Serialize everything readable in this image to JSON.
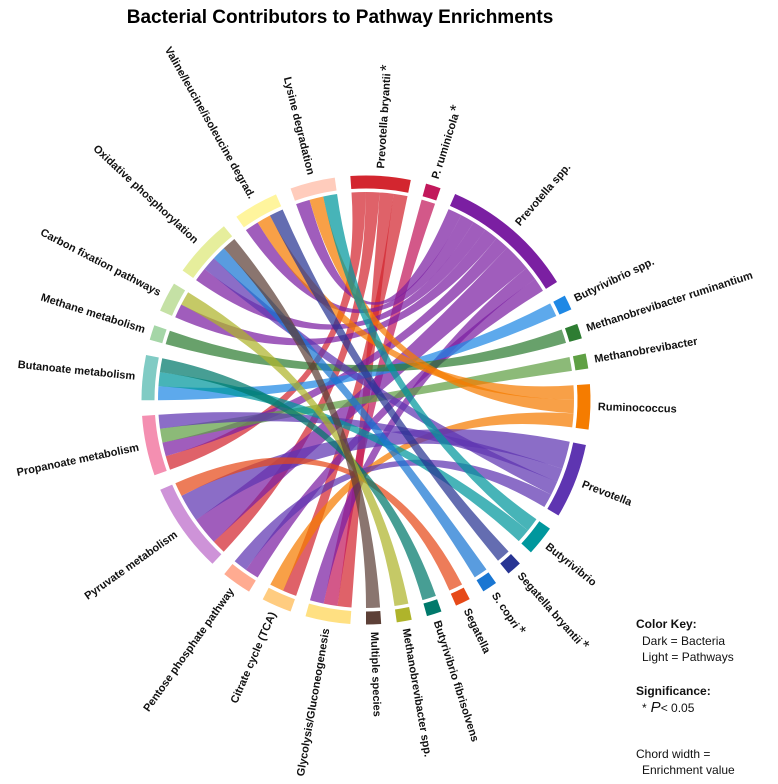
{
  "chart_data": {
    "type": "chord",
    "title": "Bacterial Contributors to Pathway Enrichments",
    "significance_marker": "*",
    "nodes": [
      {
        "name": "Prevotella bryantii",
        "group": "bacteria",
        "color": "#d3262f",
        "significant": true
      },
      {
        "name": "P. ruminicola",
        "group": "bacteria",
        "color": "#c2185b",
        "significant": true
      },
      {
        "name": "Prevotella spp.",
        "group": "bacteria",
        "color": "#7b1fa2",
        "significant": false
      },
      {
        "name": "Butyrivibrio spp.",
        "group": "bacteria",
        "color": "#1e88e5",
        "significant": false
      },
      {
        "name": "Methanobrevibacter ruminantium",
        "group": "bacteria",
        "color": "#2e7d32",
        "significant": false
      },
      {
        "name": "Methanobrevibacter",
        "group": "bacteria",
        "color": "#5fa044",
        "significant": false
      },
      {
        "name": "Ruminococcus",
        "group": "bacteria",
        "color": "#f57c00",
        "significant": false
      },
      {
        "name": "Prevotella",
        "group": "bacteria",
        "color": "#5e35b1",
        "significant": false
      },
      {
        "name": "Butyrivibrio",
        "group": "bacteria",
        "color": "#00979d",
        "significant": false
      },
      {
        "name": "Segatella bryantii",
        "group": "bacteria",
        "color": "#283593",
        "significant": true
      },
      {
        "name": "S. copri",
        "group": "bacteria",
        "color": "#1976d2",
        "significant": true
      },
      {
        "name": "Segatella",
        "group": "bacteria",
        "color": "#e64a19",
        "significant": false
      },
      {
        "name": "Butyrivibrio fibrisolvens",
        "group": "bacteria",
        "color": "#00796b",
        "significant": false
      },
      {
        "name": "Methanobrevibacter spp.",
        "group": "bacteria",
        "color": "#afb42b",
        "significant": false
      },
      {
        "name": "Multiple species",
        "group": "bacteria",
        "color": "#5d4037",
        "significant": false
      },
      {
        "name": "Glycolysis/Gluconeogenesis",
        "group": "pathway",
        "color": "#ffe082",
        "significant": false
      },
      {
        "name": "Citrate cycle (TCA)",
        "group": "pathway",
        "color": "#ffcc80",
        "significant": false
      },
      {
        "name": "Pentose phosphate pathway",
        "group": "pathway",
        "color": "#ffab91",
        "significant": false
      },
      {
        "name": "Pyruvate metabolism",
        "group": "pathway",
        "color": "#ce93d8",
        "significant": false
      },
      {
        "name": "Propanoate metabolism",
        "group": "pathway",
        "color": "#f48fb1",
        "significant": false
      },
      {
        "name": "Butanoate metabolism",
        "group": "pathway",
        "color": "#80cbc4",
        "significant": false
      },
      {
        "name": "Methane metabolism",
        "group": "pathway",
        "color": "#a5d6a7",
        "significant": false
      },
      {
        "name": "Carbon fixation pathways",
        "group": "pathway",
        "color": "#c5e1a5",
        "significant": false
      },
      {
        "name": "Oxidative phosphorylation",
        "group": "pathway",
        "color": "#e6ee9c",
        "significant": false
      },
      {
        "name": "Valine/leucine/isoleucine degrad.",
        "group": "pathway",
        "color": "#fff59d",
        "significant": false
      },
      {
        "name": "Lysine degradation",
        "group": "pathway",
        "color": "#ffccbc",
        "significant": false
      }
    ],
    "chords": [
      {
        "source": "Prevotella bryantii",
        "target": "Propanoate metabolism",
        "value": 1
      },
      {
        "source": "Prevotella bryantii",
        "target": "Pyruvate metabolism",
        "value": 1
      },
      {
        "source": "Prevotella bryantii",
        "target": "Glycolysis/Gluconeogenesis",
        "value": 1
      },
      {
        "source": "Prevotella bryantii",
        "target": "Citrate cycle (TCA)",
        "value": 1
      },
      {
        "source": "P. ruminicola",
        "target": "Glycolysis/Gluconeogenesis",
        "value": 1
      },
      {
        "source": "Prevotella spp.",
        "target": "Lysine degradation",
        "value": 1
      },
      {
        "source": "Prevotella spp.",
        "target": "Valine/leucine/isoleucine degrad.",
        "value": 1
      },
      {
        "source": "Prevotella spp.",
        "target": "Oxidative phosphorylation",
        "value": 1
      },
      {
        "source": "Prevotella spp.",
        "target": "Carbon fixation pathways",
        "value": 1
      },
      {
        "source": "Prevotella spp.",
        "target": "Propanoate metabolism",
        "value": 1
      },
      {
        "source": "Prevotella spp.",
        "target": "Pyruvate metabolism",
        "value": 2
      },
      {
        "source": "Prevotella spp.",
        "target": "Glycolysis/Gluconeogenesis",
        "value": 1
      },
      {
        "source": "Prevotella spp.",
        "target": "Pentose phosphate pathway",
        "value": 1
      },
      {
        "source": "Butyrivibrio spp.",
        "target": "Butanoate metabolism",
        "value": 1
      },
      {
        "source": "Methanobrevibacter ruminantium",
        "target": "Methane metabolism",
        "value": 1
      },
      {
        "source": "Methanobrevibacter",
        "target": "Propanoate metabolism",
        "value": 1
      },
      {
        "source": "Ruminococcus",
        "target": "Valine/leucine/isoleucine degrad.",
        "value": 1
      },
      {
        "source": "Ruminococcus",
        "target": "Lysine degradation",
        "value": 1
      },
      {
        "source": "Ruminococcus",
        "target": "Citrate cycle (TCA)",
        "value": 1
      },
      {
        "source": "Prevotella",
        "target": "Pyruvate metabolism",
        "value": 2
      },
      {
        "source": "Prevotella",
        "target": "Propanoate metabolism",
        "value": 1
      },
      {
        "source": "Prevotella",
        "target": "Oxidative phosphorylation",
        "value": 1
      },
      {
        "source": "Prevotella",
        "target": "Pentose phosphate pathway",
        "value": 1
      },
      {
        "source": "Butyrivibrio",
        "target": "Lysine degradation",
        "value": 1
      },
      {
        "source": "Butyrivibrio",
        "target": "Butanoate metabolism",
        "value": 1
      },
      {
        "source": "Segatella bryantii",
        "target": "Valine/leucine/isoleucine degrad.",
        "value": 1
      },
      {
        "source": "S. copri",
        "target": "Oxidative phosphorylation",
        "value": 1
      },
      {
        "source": "Segatella",
        "target": "Pyruvate metabolism",
        "value": 1
      },
      {
        "source": "Butyrivibrio fibrisolvens",
        "target": "Butanoate metabolism",
        "value": 1
      },
      {
        "source": "Methanobrevibacter spp.",
        "target": "Carbon fixation pathways",
        "value": 1
      },
      {
        "source": "Multiple species",
        "target": "Oxidative phosphorylation",
        "value": 1
      }
    ],
    "legend": {
      "color_key_title": "Color Key:",
      "color_key": [
        "Dark = Bacteria",
        "Light = Pathways"
      ],
      "significance_title": "Significance:",
      "significance_symbol": "P",
      "significance_text": "< 0.05",
      "chord_width": [
        "Chord width =",
        "Enrichment value"
      ]
    }
  }
}
